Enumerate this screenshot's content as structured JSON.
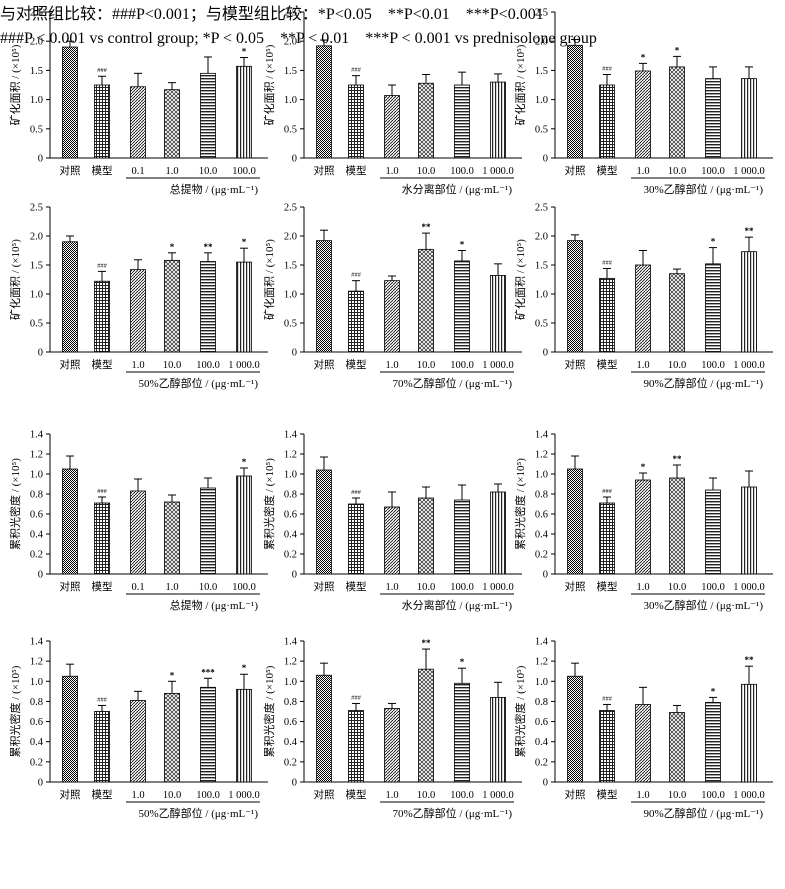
{
  "footnote": {
    "line_zh": "与对照组比较：###P<0.001；与模型组比较：*P<0.05　**P<0.01　***P<0.001",
    "line_en": "###P < 0.001 vs control group; *P < 0.05　**P < 0.01　***P < 0.001 vs prednisolone group"
  },
  "colors": {
    "bar_fill": "#ffffff",
    "hatch": "#000000",
    "axis": "#000000"
  },
  "chart_data": [
    {
      "type": "bar",
      "ylabel": "矿化面积 / (×10⁵)",
      "ylim": [
        0,
        2.5
      ],
      "yticks": [
        "0",
        "0.5",
        "1.0",
        "1.5",
        "2.0",
        "2.5"
      ],
      "categories": [
        "对照",
        "模型",
        "0.1",
        "1.0",
        "10.0",
        "100.0"
      ],
      "xlabel": "总提物 / (μg·mL⁻¹)",
      "values": [
        1.9,
        1.25,
        1.22,
        1.17,
        1.45,
        1.57
      ],
      "errors": [
        0.1,
        0.15,
        0.23,
        0.12,
        0.28,
        0.15
      ],
      "annotations": [
        "",
        "###",
        "",
        "",
        "",
        "*"
      ]
    },
    {
      "type": "bar",
      "ylabel": "矿化面积 / (×10⁵)",
      "ylim": [
        0,
        2.5
      ],
      "yticks": [
        "0",
        "0.5",
        "1.0",
        "1.5",
        "2.0",
        "2.5"
      ],
      "categories": [
        "对照",
        "模型",
        "1.0",
        "10.0",
        "100.0",
        "1 000.0"
      ],
      "xlabel": "水分离部位 / (μg·mL⁻¹)",
      "values": [
        1.92,
        1.25,
        1.07,
        1.28,
        1.25,
        1.3
      ],
      "errors": [
        0.1,
        0.16,
        0.18,
        0.15,
        0.22,
        0.14
      ],
      "annotations": [
        "",
        "###",
        "",
        "",
        "",
        ""
      ]
    },
    {
      "type": "bar",
      "ylabel": "矿化面积 / (×10⁵)",
      "ylim": [
        0,
        2.5
      ],
      "yticks": [
        "0",
        "0.5",
        "1.0",
        "1.5",
        "2.0",
        "2.5"
      ],
      "categories": [
        "对照",
        "模型",
        "1.0",
        "10.0",
        "100.0",
        "1 000.0"
      ],
      "xlabel": "30%乙醇部位 / (μg·mL⁻¹)",
      "values": [
        1.93,
        1.25,
        1.49,
        1.56,
        1.36,
        1.36
      ],
      "errors": [
        0.1,
        0.18,
        0.13,
        0.18,
        0.2,
        0.2
      ],
      "annotations": [
        "",
        "###",
        "*",
        "*",
        "",
        ""
      ]
    },
    {
      "type": "bar",
      "ylabel": "矿化面积 / (×10⁵)",
      "ylim": [
        0,
        2.5
      ],
      "yticks": [
        "0",
        "0.5",
        "1.0",
        "1.5",
        "2.0",
        "2.5"
      ],
      "categories": [
        "对照",
        "模型",
        "1.0",
        "10.0",
        "100.0",
        "1 000.0"
      ],
      "xlabel": "50%乙醇部位 / (μg·mL⁻¹)",
      "values": [
        1.9,
        1.22,
        1.42,
        1.58,
        1.56,
        1.55
      ],
      "errors": [
        0.1,
        0.17,
        0.17,
        0.13,
        0.15,
        0.24
      ],
      "annotations": [
        "",
        "###",
        "",
        "*",
        "**",
        "*"
      ]
    },
    {
      "type": "bar",
      "ylabel": "矿化面积 / (×10⁵)",
      "ylim": [
        0,
        2.5
      ],
      "yticks": [
        "0",
        "0.5",
        "1.0",
        "1.5",
        "2.0",
        "2.5"
      ],
      "categories": [
        "对照",
        "模型",
        "1.0",
        "10.0",
        "100.0",
        "1 000.0"
      ],
      "xlabel": "70%乙醇部位 / (μg·mL⁻¹)",
      "values": [
        1.92,
        1.05,
        1.23,
        1.77,
        1.57,
        1.32
      ],
      "errors": [
        0.18,
        0.18,
        0.08,
        0.28,
        0.18,
        0.2
      ],
      "annotations": [
        "",
        "###",
        "",
        "**",
        "*",
        ""
      ]
    },
    {
      "type": "bar",
      "ylabel": "矿化面积 / (×10⁵)",
      "ylim": [
        0,
        2.5
      ],
      "yticks": [
        "0",
        "0.5",
        "1.0",
        "1.5",
        "2.0",
        "2.5"
      ],
      "categories": [
        "对照",
        "模型",
        "1.0",
        "10.0",
        "100.0",
        "1 000.0"
      ],
      "xlabel": "90%乙醇部位 / (μg·mL⁻¹)",
      "values": [
        1.92,
        1.27,
        1.5,
        1.35,
        1.52,
        1.73
      ],
      "errors": [
        0.1,
        0.17,
        0.25,
        0.08,
        0.28,
        0.25
      ],
      "annotations": [
        "",
        "###",
        "",
        "",
        "*",
        "**"
      ]
    },
    {
      "type": "bar",
      "ylabel": "累积光密度 / (×10⁵)",
      "ylim": [
        0,
        1.4
      ],
      "yticks": [
        "0",
        "0.2",
        "0.4",
        "0.6",
        "0.8",
        "1.0",
        "1.2",
        "1.4"
      ],
      "categories": [
        "对照",
        "模型",
        "0.1",
        "1.0",
        "10.0",
        "100.0"
      ],
      "xlabel": "总提物 / (μg·mL⁻¹)",
      "values": [
        1.05,
        0.71,
        0.83,
        0.72,
        0.86,
        0.98
      ],
      "errors": [
        0.13,
        0.06,
        0.12,
        0.07,
        0.1,
        0.08
      ],
      "annotations": [
        "",
        "###",
        "",
        "",
        "",
        "*"
      ]
    },
    {
      "type": "bar",
      "ylabel": "累积光密度 / (×10⁵)",
      "ylim": [
        0,
        1.4
      ],
      "yticks": [
        "0",
        "0.2",
        "0.4",
        "0.6",
        "0.8",
        "1.0",
        "1.2",
        "1.4"
      ],
      "categories": [
        "对照",
        "模型",
        "1.0",
        "10.0",
        "100.0",
        "1 000.0"
      ],
      "xlabel": "水分离部位 / (μg·mL⁻¹)",
      "values": [
        1.04,
        0.7,
        0.67,
        0.76,
        0.74,
        0.82
      ],
      "errors": [
        0.13,
        0.06,
        0.15,
        0.11,
        0.15,
        0.08
      ],
      "annotations": [
        "",
        "###",
        "",
        "",
        "",
        ""
      ]
    },
    {
      "type": "bar",
      "ylabel": "累积光密度 / (×10⁵)",
      "ylim": [
        0,
        1.4
      ],
      "yticks": [
        "0",
        "0.2",
        "0.4",
        "0.6",
        "0.8",
        "1.0",
        "1.2",
        "1.4"
      ],
      "categories": [
        "对照",
        "模型",
        "1.0",
        "10.0",
        "100.0",
        "1 000.0"
      ],
      "xlabel": "30%乙醇部位 / (μg·mL⁻¹)",
      "values": [
        1.05,
        0.71,
        0.94,
        0.96,
        0.84,
        0.87
      ],
      "errors": [
        0.13,
        0.06,
        0.07,
        0.13,
        0.12,
        0.16
      ],
      "annotations": [
        "",
        "###",
        "*",
        "**",
        "",
        ""
      ]
    },
    {
      "type": "bar",
      "ylabel": "累积光密度 / (×10⁵)",
      "ylim": [
        0,
        1.4
      ],
      "yticks": [
        "0",
        "0.2",
        "0.4",
        "0.6",
        "0.8",
        "1.0",
        "1.2",
        "1.4"
      ],
      "categories": [
        "对照",
        "模型",
        "1.0",
        "10.0",
        "100.0",
        "1 000.0"
      ],
      "xlabel": "50%乙醇部位 / (μg·mL⁻¹)",
      "values": [
        1.05,
        0.7,
        0.81,
        0.88,
        0.94,
        0.92
      ],
      "errors": [
        0.12,
        0.06,
        0.09,
        0.12,
        0.09,
        0.15
      ],
      "annotations": [
        "",
        "###",
        "",
        "*",
        "***",
        "*"
      ]
    },
    {
      "type": "bar",
      "ylabel": "累积光密度 / (×10⁵)",
      "ylim": [
        0,
        1.4
      ],
      "yticks": [
        "0",
        "0.2",
        "0.4",
        "0.6",
        "0.8",
        "1.0",
        "1.2",
        "1.4"
      ],
      "categories": [
        "对照",
        "模型",
        "1.0",
        "10.0",
        "100.0",
        "1 000.0"
      ],
      "xlabel": "70%乙醇部位 / (μg·mL⁻¹)",
      "values": [
        1.06,
        0.71,
        0.73,
        1.12,
        0.98,
        0.84
      ],
      "errors": [
        0.12,
        0.07,
        0.05,
        0.2,
        0.15,
        0.15
      ],
      "annotations": [
        "",
        "###",
        "",
        "**",
        "*",
        ""
      ]
    },
    {
      "type": "bar",
      "ylabel": "累积光密度 / (×10⁵)",
      "ylim": [
        0,
        1.4
      ],
      "yticks": [
        "0",
        "0.2",
        "0.4",
        "0.6",
        "0.8",
        "1.0",
        "1.2",
        "1.4"
      ],
      "categories": [
        "对照",
        "模型",
        "1.0",
        "10.0",
        "100.0",
        "1 000.0"
      ],
      "xlabel": "90%乙醇部位 / (μg·mL⁻¹)",
      "values": [
        1.05,
        0.71,
        0.77,
        0.69,
        0.79,
        0.97
      ],
      "errors": [
        0.13,
        0.06,
        0.17,
        0.07,
        0.05,
        0.18
      ],
      "annotations": [
        "",
        "###",
        "",
        "",
        "*",
        "**"
      ]
    }
  ]
}
